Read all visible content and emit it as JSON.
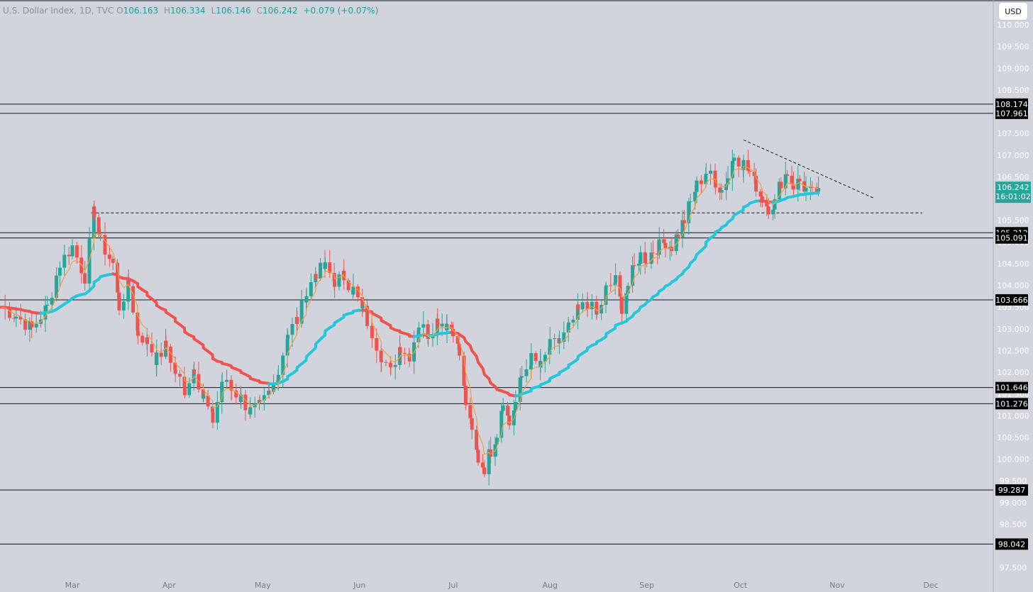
{
  "header": {
    "symbol": "U.S. Dollar Index, 1D, TVC",
    "open_label": "O",
    "open": "106.163",
    "high_label": "H",
    "high": "106.334",
    "low_label": "L",
    "low": "106.146",
    "close_label": "C",
    "close": "106.242",
    "change": "+0.079 (+0.07%)"
  },
  "currency_button": "USD",
  "price_tag": {
    "price": "106.242",
    "countdown": "16:01:02",
    "color": "#26a69a"
  },
  "colors": {
    "up": "#26a69a",
    "down": "#ef5350",
    "ema_fast": "#f0a040",
    "ema_up": "#26c6da",
    "ema_down": "#ef5350",
    "axis_bg": "#d1d4dc",
    "level_tag": "#000000"
  },
  "chart_data": {
    "type": "candlestick",
    "title": "",
    "ylim": [
      97.25,
      110.25
    ],
    "y_ticks": [
      "97.500",
      "98.000",
      "98.500",
      "99.000",
      "99.500",
      "100.000",
      "100.500",
      "101.000",
      "101.500",
      "102.000",
      "102.500",
      "103.000",
      "103.500",
      "104.000",
      "104.500",
      "105.000",
      "105.500",
      "106.000",
      "106.500",
      "107.000",
      "107.500",
      "108.000",
      "108.500",
      "109.000",
      "109.500",
      "110.000"
    ],
    "x_ticks": [
      {
        "label": "Mar",
        "day": 0
      },
      {
        "label": "Apr",
        "day": 31
      },
      {
        "label": "May",
        "day": 61
      },
      {
        "label": "Jun",
        "day": 92
      },
      {
        "label": "Jul",
        "day": 122
      },
      {
        "label": "Aug",
        "day": 153
      },
      {
        "label": "Sep",
        "day": 184
      },
      {
        "label": "Oct",
        "day": 214
      },
      {
        "label": "Nov",
        "day": 245
      },
      {
        "label": "Dec",
        "day": 275
      }
    ],
    "horizontal_levels": [
      "108.174",
      "107.961",
      "105.212",
      "105.091",
      "103.666",
      "101.646",
      "101.276",
      "99.287",
      "98.042"
    ],
    "dashed_support": 105.67,
    "trendline": [
      [
        215,
        107.35
      ],
      [
        257,
        106.0
      ]
    ],
    "closes_anchors": [
      [
        -23,
        103.5
      ],
      [
        -18,
        103.3
      ],
      [
        -13,
        103.0
      ],
      [
        -8,
        103.5
      ],
      [
        -4,
        104.5
      ],
      [
        0,
        104.9
      ],
      [
        4,
        104.2
      ],
      [
        7,
        105.7
      ],
      [
        9,
        105.0
      ],
      [
        13,
        104.5
      ],
      [
        15,
        103.5
      ],
      [
        18,
        104.0
      ],
      [
        21,
        102.9
      ],
      [
        24,
        102.7
      ],
      [
        27,
        102.3
      ],
      [
        30,
        102.6
      ],
      [
        33,
        102.0
      ],
      [
        36,
        101.6
      ],
      [
        39,
        102.1
      ],
      [
        42,
        101.4
      ],
      [
        45,
        100.9
      ],
      [
        48,
        101.8
      ],
      [
        51,
        101.6
      ],
      [
        54,
        101.4
      ],
      [
        57,
        101.1
      ],
      [
        60,
        101.2
      ],
      [
        63,
        101.5
      ],
      [
        66,
        102.0
      ],
      [
        69,
        102.9
      ],
      [
        72,
        103.2
      ],
      [
        75,
        103.8
      ],
      [
        78,
        104.3
      ],
      [
        81,
        104.4
      ],
      [
        84,
        104.1
      ],
      [
        87,
        104.2
      ],
      [
        90,
        103.9
      ],
      [
        93,
        103.4
      ],
      [
        96,
        102.9
      ],
      [
        99,
        102.4
      ],
      [
        102,
        102.0
      ],
      [
        105,
        102.6
      ],
      [
        108,
        102.4
      ],
      [
        111,
        103.1
      ],
      [
        114,
        102.9
      ],
      [
        117,
        103.2
      ],
      [
        120,
        103.1
      ],
      [
        122,
        103.0
      ],
      [
        124,
        102.4
      ],
      [
        126,
        101.3
      ],
      [
        128,
        100.6
      ],
      [
        130,
        100.0
      ],
      [
        132,
        99.8
      ],
      [
        134,
        100.2
      ],
      [
        136,
        100.6
      ],
      [
        138,
        101.4
      ],
      [
        140,
        100.8
      ],
      [
        142,
        101.3
      ],
      [
        144,
        101.9
      ],
      [
        147,
        102.3
      ],
      [
        150,
        102.1
      ],
      [
        153,
        102.6
      ],
      [
        156,
        102.7
      ],
      [
        159,
        103.0
      ],
      [
        162,
        103.4
      ],
      [
        165,
        103.6
      ],
      [
        168,
        103.3
      ],
      [
        171,
        103.9
      ],
      [
        174,
        104.1
      ],
      [
        176,
        103.5
      ],
      [
        178,
        104.0
      ],
      [
        180,
        104.4
      ],
      [
        182,
        104.7
      ],
      [
        184,
        104.6
      ],
      [
        186,
        104.8
      ],
      [
        188,
        104.9
      ],
      [
        190,
        105.0
      ],
      [
        192,
        104.9
      ],
      [
        194,
        105.2
      ],
      [
        196,
        105.5
      ],
      [
        198,
        105.9
      ],
      [
        200,
        106.3
      ],
      [
        203,
        106.6
      ],
      [
        206,
        106.4
      ],
      [
        208,
        106.2
      ],
      [
        210,
        106.5
      ],
      [
        212,
        107.0
      ],
      [
        215,
        106.8
      ],
      [
        217,
        106.6
      ],
      [
        219,
        106.3
      ],
      [
        221,
        106.0
      ],
      [
        223,
        105.8
      ],
      [
        225,
        105.9
      ],
      [
        227,
        106.4
      ],
      [
        229,
        106.6
      ],
      [
        231,
        106.3
      ],
      [
        233,
        106.4
      ],
      [
        235,
        106.2
      ],
      [
        237,
        106.1
      ],
      [
        239,
        106.24
      ]
    ]
  },
  "time_axis_labels": [
    "Mar",
    "Apr",
    "May",
    "Jun",
    "Jul",
    "Aug",
    "Sep",
    "Oct",
    "Nov",
    "Dec"
  ]
}
